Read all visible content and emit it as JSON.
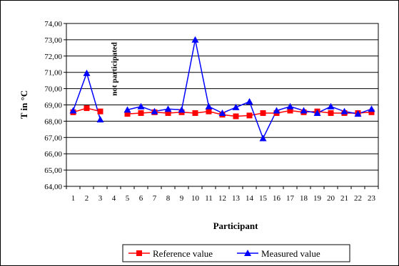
{
  "chart_data": {
    "type": "line",
    "title": "",
    "xlabel": "Participant",
    "ylabel": "T in °C",
    "x": [
      1,
      2,
      3,
      4,
      5,
      6,
      7,
      8,
      9,
      10,
      11,
      12,
      13,
      14,
      15,
      16,
      17,
      18,
      19,
      20,
      21,
      22,
      23
    ],
    "xticks": [
      "1",
      "2",
      "3",
      "4",
      "5",
      "6",
      "7",
      "8",
      "9",
      "10",
      "11",
      "12",
      "13",
      "14",
      "15",
      "16",
      "17",
      "18",
      "19",
      "20",
      "21",
      "22",
      "23"
    ],
    "ylim": [
      64,
      74
    ],
    "yticks": [
      "64,00",
      "65,00",
      "66,00",
      "67,00",
      "68,00",
      "69,00",
      "70,00",
      "71,00",
      "72,00",
      "73,00",
      "74,00"
    ],
    "grid": "horizontal",
    "legend_position": "bottom",
    "annotation": {
      "text": "not participated",
      "x": 4
    },
    "series": [
      {
        "name": "Reference value",
        "color": "#ff0000",
        "marker": "square",
        "values": [
          68.55,
          68.8,
          68.6,
          null,
          68.45,
          68.5,
          68.55,
          68.5,
          68.55,
          68.5,
          68.6,
          68.4,
          68.3,
          68.35,
          68.5,
          68.5,
          68.65,
          68.55,
          68.6,
          68.5,
          68.5,
          68.5,
          68.55
        ]
      },
      {
        "name": "Measured value",
        "color": "#0000ff",
        "marker": "triangle",
        "values": [
          68.65,
          70.95,
          68.1,
          null,
          68.7,
          68.9,
          68.6,
          68.75,
          68.7,
          73.0,
          68.9,
          68.5,
          68.85,
          69.2,
          66.95,
          68.65,
          68.9,
          68.65,
          68.5,
          68.9,
          68.6,
          68.45,
          68.75
        ]
      }
    ]
  }
}
